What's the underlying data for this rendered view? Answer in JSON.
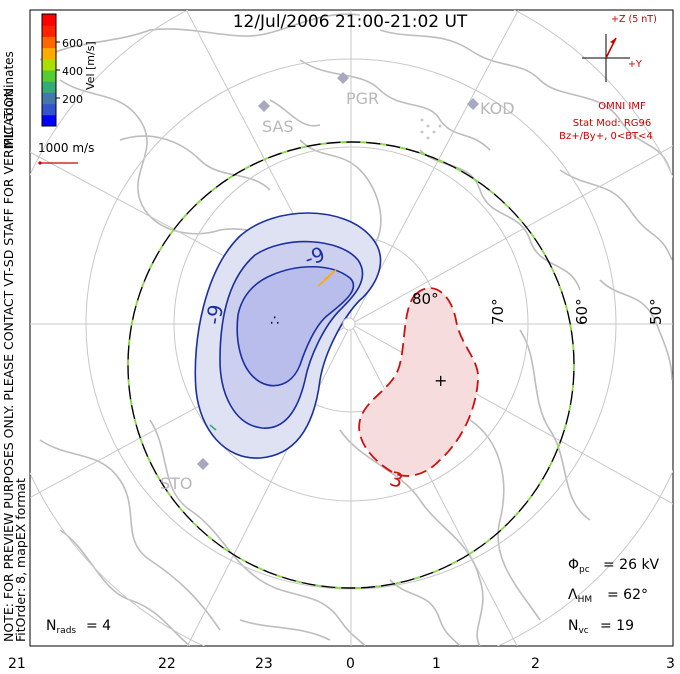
{
  "title": "12/Jul/2006 21:00-21:02 UT",
  "coordinates_label": "MLT coordinates",
  "watermark": "NOTE: FOR PREVIEW PURPOSES ONLY. PLEASE CONTACT VT-SD STAFF FOR VERIFICATION.",
  "fit_info": "FitOrder: 8, mapEX format",
  "colorbar": {
    "label": "Vel [m/s]",
    "ticks": [
      "600",
      "400",
      "200"
    ],
    "colors": [
      "#0000ff",
      "#3355cc",
      "#4477aa",
      "#33aa77",
      "#55cc33",
      "#aadd00",
      "#ffaa00",
      "#ff6600",
      "#ff2200",
      "#ff0000"
    ]
  },
  "vector_scale": {
    "label": "1000 m/s",
    "color": "#cc0000"
  },
  "imf": {
    "z_label": "+Z (5 nT)",
    "y_label": "+Y",
    "source": "OMNI IMF",
    "stat_mod": "Stat Mod: RG96",
    "condition": "Bz+/By+, 0<BT<4",
    "color": "#cc0000",
    "vector_color": "#cc0000"
  },
  "stations": [
    "SAS",
    "PGR",
    "KOD",
    "STO"
  ],
  "latitude_labels": [
    "80°",
    "70°",
    "60°",
    "50°"
  ],
  "mlt_labels": [
    "21",
    "22",
    "23",
    "0",
    "1",
    "2",
    "3"
  ],
  "contour_labels": {
    "negative": "-9",
    "negative_small": "-9",
    "positive": "3"
  },
  "contour_colors": {
    "negative": "#1a2fa0",
    "positive": "#cc1111",
    "neg_fill": "#dfe2f2",
    "neg_fill_inner": "#b9bdec",
    "pos_fill": "#f6dcdc",
    "hm_boundary": "#000000",
    "hm_dash": "#88dd44"
  },
  "stats": {
    "phi_pc_label": "Φpc",
    "phi_pc_value": "= 26 kV",
    "lambda_hm_label": "ΛHM",
    "lambda_hm_value": "= 62°",
    "n_vc_label": "Nvc",
    "n_vc_value": "= 19",
    "n_rads_label": "Nrads",
    "n_rads_value": "= 4"
  },
  "phi_pc_kv": 26,
  "lambda_hm_deg": 62,
  "n_vc": 19,
  "n_rads": 4
}
